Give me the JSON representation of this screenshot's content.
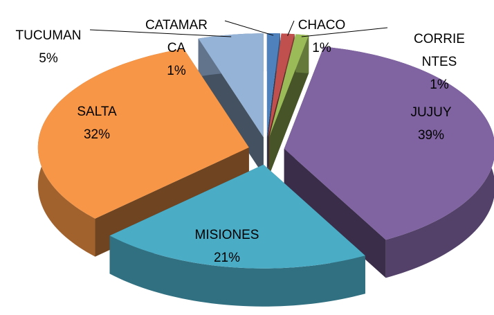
{
  "chart_data": {
    "type": "pie",
    "categories": [
      "CATAMARCA",
      "CHACO",
      "CORRIENTES",
      "JUJUY",
      "MISIONES",
      "SALTA",
      "TUCUMAN"
    ],
    "values": [
      1,
      1,
      1,
      39,
      21,
      32,
      5
    ],
    "value_labels": [
      "1%",
      "1%",
      "1%",
      "39%",
      "21%",
      "32%",
      "5%"
    ],
    "colors": [
      "#4f81bd",
      "#c0504d",
      "#9bbb59",
      "#8064a2",
      "#4bacc6",
      "#f79646",
      "#95b3d7"
    ]
  }
}
